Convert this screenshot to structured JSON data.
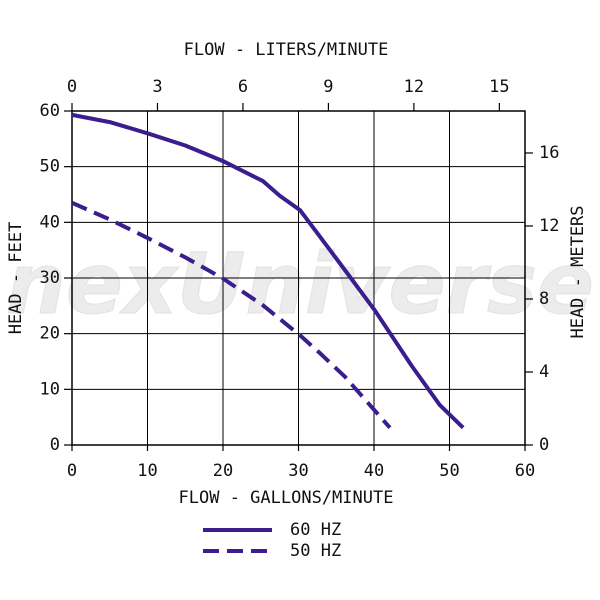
{
  "chart_data": {
    "type": "line",
    "watermark": "nexUniverse",
    "x_label": "FLOW - GALLONS/MINUTE",
    "x2_label": "FLOW - LITERS/MINUTE",
    "y_label": "HEAD - FEET",
    "y2_label": "HEAD - METERS",
    "xlim": [
      0,
      60
    ],
    "xticks": [
      0,
      10,
      20,
      30,
      40,
      50,
      60
    ],
    "x2lim": [
      0,
      15.9
    ],
    "x2ticks": [
      0,
      3,
      6,
      9,
      12,
      15
    ],
    "ylim": [
      0,
      60
    ],
    "yticks": [
      0,
      10,
      20,
      30,
      40,
      50,
      60
    ],
    "y2lim": [
      0,
      18.3
    ],
    "y2ticks": [
      0,
      4,
      8,
      12,
      16
    ],
    "grid": true,
    "series": [
      {
        "name": "60 HZ",
        "color": "#3b1e8e",
        "dash": false,
        "x": [
          0,
          5,
          10,
          15,
          20,
          25.3,
          27.5,
          30.2,
          35,
          40.1,
          45,
          48.7,
          51.8
        ],
        "values": [
          59.3,
          58,
          56,
          53.8,
          51,
          47.4,
          44.8,
          42.2,
          33.5,
          24.2,
          14.2,
          7.2,
          3.1
        ]
      },
      {
        "name": "50 HZ",
        "color": "#3b1e8e",
        "dash": true,
        "x": [
          0,
          5,
          10,
          15,
          19.9,
          25.3,
          30.2,
          33,
          36.2,
          42.1
        ],
        "values": [
          43.5,
          40.5,
          37.2,
          33.7,
          30,
          25.1,
          19.7,
          16.3,
          12.2,
          3.1
        ]
      }
    ]
  }
}
